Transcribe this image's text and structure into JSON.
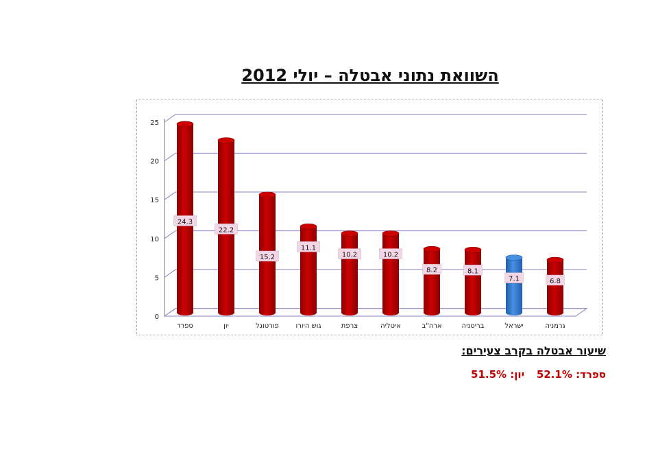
{
  "title": "השוואת נתוני אבטלה – יולי 2012",
  "colors": {
    "bar": "#cc0000",
    "bar_dark": "#8a0000",
    "bar_highlight": "#4a90e0",
    "bar_highlight_dark": "#1f5fb0",
    "gridline": "#8c7fc0",
    "label_bg": "#f3d6e6",
    "stat_text": "#c00000"
  },
  "chart_data": {
    "type": "bar",
    "categories": [
      "ספרד",
      "יון",
      "פורטוגל",
      "גוש היורו",
      "צרפת",
      "איטליה",
      "ארה\"ב",
      "בריטניה",
      "ישראל",
      "גרמניה"
    ],
    "values": [
      24.3,
      22.2,
      15.2,
      11.1,
      10.2,
      10.2,
      8.2,
      8.1,
      7.1,
      6.8
    ],
    "data_labels": [
      "24.3",
      "22.2",
      "15.2",
      "11.1",
      "10.2",
      "10.2",
      "8.2",
      "8.1",
      "7.1",
      "6.8"
    ],
    "highlight_category": "ישראל",
    "ylim": [
      0,
      25
    ],
    "yticks": [
      0,
      5,
      10,
      15,
      20,
      25
    ],
    "ytick_labels": [
      "0",
      "5",
      "10",
      "15",
      "20",
      "25"
    ],
    "grid": true,
    "legend": "none",
    "style": "3d-cylinder"
  },
  "note": {
    "heading": "שיעור אבטלה בקרב צעירים:",
    "spain": "ספרד: 52.1%",
    "greece": "יון: 51.5%"
  }
}
